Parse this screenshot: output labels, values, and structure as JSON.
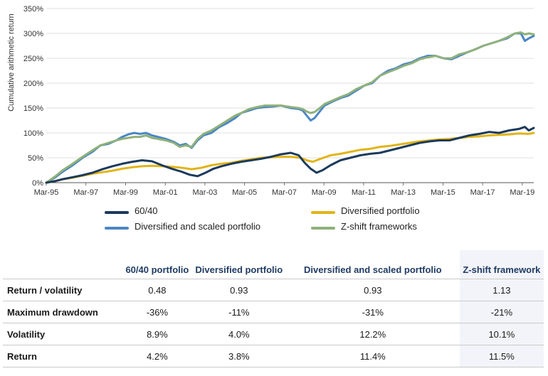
{
  "chart_data": {
    "type": "line",
    "ylabel": "Cumulative arithmetic return",
    "xlabel": "",
    "title": "",
    "ylim": [
      0,
      350
    ],
    "xlim": [
      1995.17,
      2019.75
    ],
    "yticks": [
      "0%",
      "50%",
      "100%",
      "150%",
      "200%",
      "250%",
      "300%",
      "350%"
    ],
    "xticks": [
      "Mar-95",
      "Mar-97",
      "Mar-99",
      "Mar-01",
      "Mar-03",
      "Mar-05",
      "Mar-07",
      "Mar-09",
      "Mar-11",
      "Mar-13",
      "Mar-15",
      "Mar-17",
      "Mar-19"
    ],
    "grid": "horizontal",
    "legend_position": "bottom",
    "series": [
      {
        "name": "Diversified and scaled portfolio",
        "color": "#4a86c4",
        "width": 3,
        "points": [
          [
            1995.17,
            0
          ],
          [
            1995.6,
            10
          ],
          [
            1996.0,
            22
          ],
          [
            1996.5,
            35
          ],
          [
            1997.0,
            50
          ],
          [
            1997.5,
            62
          ],
          [
            1997.9,
            75
          ],
          [
            1998.3,
            78
          ],
          [
            1998.7,
            85
          ],
          [
            1999.0,
            92
          ],
          [
            1999.3,
            97
          ],
          [
            1999.6,
            100
          ],
          [
            1999.9,
            98
          ],
          [
            2000.2,
            100
          ],
          [
            2000.5,
            95
          ],
          [
            2000.8,
            92
          ],
          [
            2001.2,
            88
          ],
          [
            2001.6,
            82
          ],
          [
            2001.9,
            75
          ],
          [
            2002.2,
            78
          ],
          [
            2002.5,
            70
          ],
          [
            2002.8,
            85
          ],
          [
            2003.1,
            95
          ],
          [
            2003.5,
            100
          ],
          [
            2003.9,
            112
          ],
          [
            2004.3,
            120
          ],
          [
            2004.7,
            130
          ],
          [
            2005.0,
            140
          ],
          [
            2005.4,
            145
          ],
          [
            2005.8,
            150
          ],
          [
            2006.2,
            152
          ],
          [
            2006.6,
            153
          ],
          [
            2007.0,
            155
          ],
          [
            2007.5,
            150
          ],
          [
            2007.9,
            148
          ],
          [
            2008.1,
            145
          ],
          [
            2008.3,
            135
          ],
          [
            2008.5,
            125
          ],
          [
            2008.7,
            130
          ],
          [
            2008.9,
            140
          ],
          [
            2009.2,
            155
          ],
          [
            2009.6,
            163
          ],
          [
            2010.0,
            170
          ],
          [
            2010.4,
            175
          ],
          [
            2010.8,
            185
          ],
          [
            2011.2,
            195
          ],
          [
            2011.6,
            200
          ],
          [
            2012.0,
            215
          ],
          [
            2012.4,
            225
          ],
          [
            2012.8,
            230
          ],
          [
            2013.2,
            238
          ],
          [
            2013.6,
            242
          ],
          [
            2014.0,
            250
          ],
          [
            2014.4,
            255
          ],
          [
            2014.8,
            255
          ],
          [
            2015.2,
            250
          ],
          [
            2015.6,
            248
          ],
          [
            2016.0,
            255
          ],
          [
            2016.4,
            262
          ],
          [
            2016.8,
            268
          ],
          [
            2017.2,
            275
          ],
          [
            2017.6,
            280
          ],
          [
            2018.0,
            285
          ],
          [
            2018.4,
            290
          ],
          [
            2018.8,
            300
          ],
          [
            2019.1,
            300
          ],
          [
            2019.3,
            285
          ],
          [
            2019.5,
            290
          ],
          [
            2019.75,
            295
          ]
        ]
      },
      {
        "name": "Z-shift frameworks",
        "color": "#8fb17a",
        "width": 3,
        "points": [
          [
            1995.17,
            0
          ],
          [
            1995.6,
            12
          ],
          [
            1996.0,
            25
          ],
          [
            1996.5,
            38
          ],
          [
            1997.0,
            52
          ],
          [
            1997.5,
            65
          ],
          [
            1997.9,
            75
          ],
          [
            1998.3,
            80
          ],
          [
            1998.7,
            85
          ],
          [
            1999.0,
            88
          ],
          [
            1999.3,
            90
          ],
          [
            1999.6,
            92
          ],
          [
            1999.9,
            92
          ],
          [
            2000.2,
            95
          ],
          [
            2000.5,
            90
          ],
          [
            2000.8,
            88
          ],
          [
            2001.2,
            85
          ],
          [
            2001.6,
            80
          ],
          [
            2001.9,
            72
          ],
          [
            2002.2,
            75
          ],
          [
            2002.5,
            72
          ],
          [
            2002.8,
            88
          ],
          [
            2003.1,
            98
          ],
          [
            2003.5,
            105
          ],
          [
            2003.9,
            115
          ],
          [
            2004.3,
            125
          ],
          [
            2004.7,
            135
          ],
          [
            2005.0,
            140
          ],
          [
            2005.4,
            148
          ],
          [
            2005.8,
            152
          ],
          [
            2006.2,
            155
          ],
          [
            2006.6,
            155
          ],
          [
            2007.0,
            155
          ],
          [
            2007.5,
            152
          ],
          [
            2007.9,
            150
          ],
          [
            2008.1,
            148
          ],
          [
            2008.3,
            143
          ],
          [
            2008.5,
            140
          ],
          [
            2008.7,
            142
          ],
          [
            2008.9,
            148
          ],
          [
            2009.2,
            158
          ],
          [
            2009.6,
            165
          ],
          [
            2010.0,
            172
          ],
          [
            2010.4,
            178
          ],
          [
            2010.8,
            188
          ],
          [
            2011.2,
            195
          ],
          [
            2011.6,
            202
          ],
          [
            2012.0,
            215
          ],
          [
            2012.4,
            222
          ],
          [
            2012.8,
            228
          ],
          [
            2013.2,
            235
          ],
          [
            2013.6,
            240
          ],
          [
            2014.0,
            248
          ],
          [
            2014.4,
            252
          ],
          [
            2014.8,
            255
          ],
          [
            2015.2,
            250
          ],
          [
            2015.6,
            250
          ],
          [
            2016.0,
            258
          ],
          [
            2016.4,
            262
          ],
          [
            2016.8,
            268
          ],
          [
            2017.2,
            275
          ],
          [
            2017.6,
            280
          ],
          [
            2018.0,
            285
          ],
          [
            2018.4,
            292
          ],
          [
            2018.8,
            300
          ],
          [
            2019.1,
            302
          ],
          [
            2019.3,
            298
          ],
          [
            2019.5,
            300
          ],
          [
            2019.75,
            298
          ]
        ]
      },
      {
        "name": "Diversified portfolio",
        "color": "#e1b419",
        "width": 3,
        "points": [
          [
            1995.17,
            0
          ],
          [
            1995.6,
            3
          ],
          [
            1996.0,
            7
          ],
          [
            1996.5,
            10
          ],
          [
            1997.0,
            14
          ],
          [
            1997.5,
            18
          ],
          [
            1998.0,
            21
          ],
          [
            1998.5,
            24
          ],
          [
            1999.0,
            28
          ],
          [
            1999.5,
            31
          ],
          [
            2000.0,
            33
          ],
          [
            2000.5,
            34
          ],
          [
            2001.0,
            33
          ],
          [
            2001.5,
            32
          ],
          [
            2002.0,
            30
          ],
          [
            2002.5,
            27
          ],
          [
            2003.0,
            30
          ],
          [
            2003.5,
            35
          ],
          [
            2004.0,
            38
          ],
          [
            2004.5,
            40
          ],
          [
            2005.0,
            44
          ],
          [
            2005.5,
            47
          ],
          [
            2006.0,
            50
          ],
          [
            2006.5,
            51
          ],
          [
            2007.0,
            52
          ],
          [
            2007.5,
            52
          ],
          [
            2008.0,
            50
          ],
          [
            2008.3,
            45
          ],
          [
            2008.6,
            42
          ],
          [
            2009.0,
            48
          ],
          [
            2009.5,
            55
          ],
          [
            2010.0,
            58
          ],
          [
            2010.5,
            62
          ],
          [
            2011.0,
            66
          ],
          [
            2011.5,
            68
          ],
          [
            2012.0,
            72
          ],
          [
            2012.5,
            74
          ],
          [
            2013.0,
            77
          ],
          [
            2013.5,
            80
          ],
          [
            2014.0,
            83
          ],
          [
            2014.5,
            85
          ],
          [
            2015.0,
            87
          ],
          [
            2015.5,
            88
          ],
          [
            2016.0,
            90
          ],
          [
            2016.5,
            92
          ],
          [
            2017.0,
            93
          ],
          [
            2017.5,
            95
          ],
          [
            2018.0,
            96
          ],
          [
            2018.5,
            97
          ],
          [
            2019.0,
            99
          ],
          [
            2019.5,
            98
          ],
          [
            2019.75,
            100
          ]
        ]
      },
      {
        "name": "60/40",
        "color": "#1b3a5c",
        "width": 3,
        "points": [
          [
            1995.17,
            0
          ],
          [
            1995.6,
            3
          ],
          [
            1996.0,
            7
          ],
          [
            1996.5,
            11
          ],
          [
            1997.0,
            15
          ],
          [
            1997.5,
            20
          ],
          [
            1998.0,
            27
          ],
          [
            1998.5,
            33
          ],
          [
            1999.0,
            38
          ],
          [
            1999.5,
            42
          ],
          [
            2000.0,
            45
          ],
          [
            2000.5,
            43
          ],
          [
            2001.0,
            35
          ],
          [
            2001.5,
            28
          ],
          [
            2002.0,
            22
          ],
          [
            2002.4,
            16
          ],
          [
            2002.8,
            13
          ],
          [
            2003.2,
            20
          ],
          [
            2003.6,
            28
          ],
          [
            2004.0,
            33
          ],
          [
            2004.5,
            38
          ],
          [
            2005.0,
            42
          ],
          [
            2005.5,
            45
          ],
          [
            2006.0,
            48
          ],
          [
            2006.5,
            52
          ],
          [
            2007.0,
            57
          ],
          [
            2007.5,
            60
          ],
          [
            2007.9,
            55
          ],
          [
            2008.2,
            40
          ],
          [
            2008.5,
            28
          ],
          [
            2008.8,
            20
          ],
          [
            2009.1,
            25
          ],
          [
            2009.5,
            35
          ],
          [
            2010.0,
            45
          ],
          [
            2010.5,
            50
          ],
          [
            2011.0,
            55
          ],
          [
            2011.5,
            58
          ],
          [
            2012.0,
            60
          ],
          [
            2012.5,
            65
          ],
          [
            2013.0,
            70
          ],
          [
            2013.5,
            75
          ],
          [
            2014.0,
            80
          ],
          [
            2014.5,
            83
          ],
          [
            2015.0,
            85
          ],
          [
            2015.5,
            85
          ],
          [
            2016.0,
            90
          ],
          [
            2016.5,
            95
          ],
          [
            2017.0,
            98
          ],
          [
            2017.5,
            102
          ],
          [
            2018.0,
            100
          ],
          [
            2018.5,
            105
          ],
          [
            2019.0,
            108
          ],
          [
            2019.3,
            112
          ],
          [
            2019.5,
            105
          ],
          [
            2019.75,
            110
          ]
        ]
      }
    ]
  },
  "legend": [
    {
      "label": "60/40",
      "color": "#1b3a5c"
    },
    {
      "label": "Diversified portfolio",
      "color": "#e1b419"
    },
    {
      "label": "Diversified and scaled portfolio",
      "color": "#4a86c4"
    },
    {
      "label": "Z-shift frameworks",
      "color": "#8fb17a"
    }
  ],
  "table": {
    "headers": [
      "",
      "60/40 portfolio",
      "Diversified portfolio",
      "Diversified and scaled portfolio",
      "Z-shift framework"
    ],
    "rows": [
      {
        "label": "Return / volatility",
        "values": [
          "0.48",
          "0.93",
          "0.93",
          "1.13"
        ]
      },
      {
        "label": "Maximum drawdown",
        "values": [
          "-36%",
          "-11%",
          "-31%",
          "-21%"
        ]
      },
      {
        "label": "Volatility",
        "values": [
          "8.9%",
          "4.0%",
          "12.2%",
          "10.1%"
        ]
      },
      {
        "label": "Return",
        "values": [
          "4.2%",
          "3.8%",
          "11.4%",
          "11.5%"
        ]
      }
    ],
    "highlight_color": "#f3f4f9"
  }
}
